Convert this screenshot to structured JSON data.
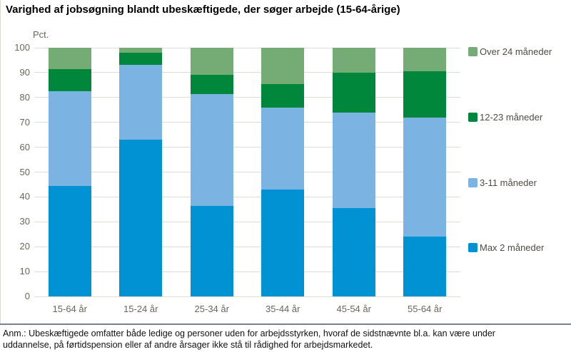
{
  "title": "Varighed af jobsøgning blandt ubeskæftigede, der søger arbejde (15-64-årige)",
  "y_axis_label": "Pct.",
  "footnote": "Anm.: Ubeskæftigede omfatter både ledige og personer uden for arbejdsstyrken, hvoraf de sidstnævnte bl.a. kan være under uddannelse, på førtidspension eller af andre årsager ikke stå til rådighed for arbejdsmarkedet.",
  "colors": {
    "max_2": "#0092d2",
    "m3_11": "#7bb4e2",
    "m12_23": "#00873b",
    "over_24": "#75ab75",
    "gridline": "#deddd4",
    "axis_text": "#6b665c",
    "legend_text": "#4f4b44",
    "divider": "#76838f"
  },
  "chart_data": {
    "type": "bar",
    "stacked": true,
    "percent_stacked": true,
    "title": "Varighed af jobsøgning blandt ubeskæftigede, der søger arbejde (15-64-årige)",
    "xlabel": "",
    "ylabel": "Pct.",
    "ylim": [
      0,
      100
    ],
    "ytick_step": 10,
    "grid": true,
    "legend_position": "right",
    "categories": [
      "15-64 år",
      "15-24 år",
      "25-34 år",
      "35-44 år",
      "45-54 år",
      "55-64 år"
    ],
    "series": [
      {
        "name": "Max 2 måneder",
        "color": "#0092d2",
        "values": [
          44.5,
          63.0,
          36.5,
          43.0,
          35.5,
          24.0
        ]
      },
      {
        "name": "3-11 måneder",
        "color": "#7bb4e2",
        "values": [
          38.0,
          30.0,
          45.0,
          33.0,
          38.5,
          48.0
        ]
      },
      {
        "name": "12-23 måneder",
        "color": "#00873b",
        "values": [
          9.0,
          5.0,
          7.5,
          9.5,
          16.0,
          18.5
        ]
      },
      {
        "name": "Over 24 måneder",
        "color": "#75ab75",
        "values": [
          8.5,
          2.0,
          11.0,
          14.5,
          10.0,
          9.5
        ]
      }
    ],
    "legend": [
      {
        "label": "Over 24 måneder",
        "color": "#75ab75"
      },
      {
        "label": "12-23 måneder",
        "color": "#00873b"
      },
      {
        "label": "3-11 måneder",
        "color": "#7bb4e2"
      },
      {
        "label": "Max 2 måneder",
        "color": "#0092d2"
      }
    ]
  }
}
